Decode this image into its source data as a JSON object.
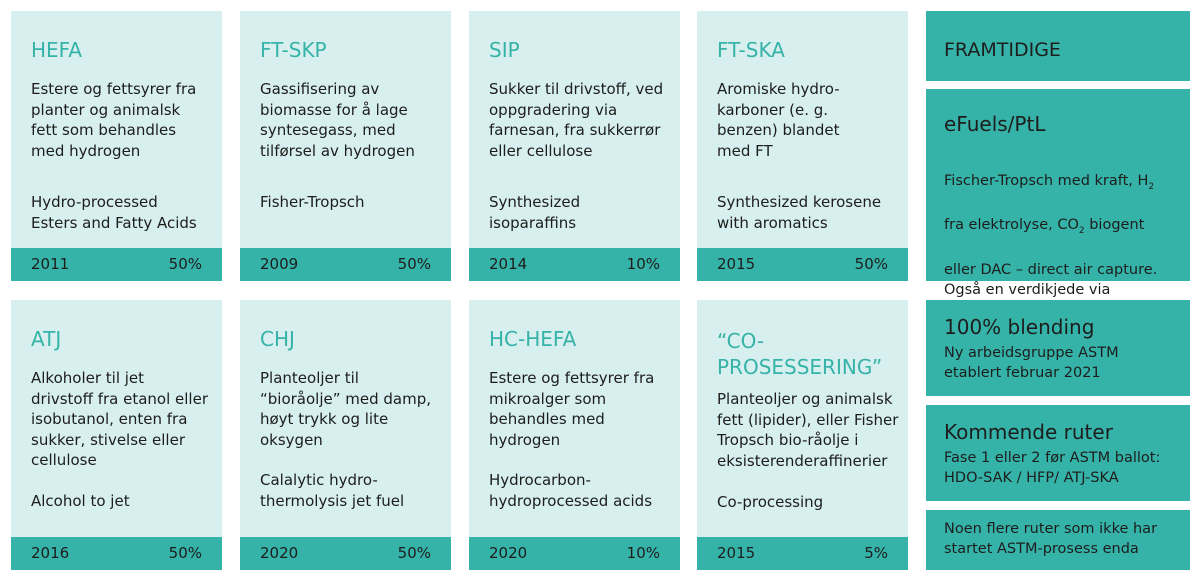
{
  "routes": [
    {
      "title": "HEFA",
      "desc": "Estere og fettsyrer fra\nplanter og animalsk\nfett som behandles\nmed hydrogen",
      "eng": "Hydro-processed\nEsters and Fatty Acids",
      "year": "2011",
      "pct": "50%"
    },
    {
      "title": "FT-SKP",
      "desc": "Gassifisering av\nbiomasse for å lage\nsyntesegass, med\ntilførsel av hydrogen",
      "eng": "Fisher-Tropsch",
      "year": "2009",
      "pct": "50%"
    },
    {
      "title": "SIP",
      "desc": "Sukker til drivstoff, ved\noppgradering via\nfarnesan, fra sukkerrør\neller cellulose",
      "eng": "Synthesized\nisoparaffins",
      "year": "2014",
      "pct": "10%"
    },
    {
      "title": "FT-SKA",
      "desc": "Aromiske hydro-\nkarboner (e. g.\nbenzen) blandet\nmed FT",
      "eng": "Synthesized kerosene\nwith aromatics",
      "year": "2015",
      "pct": "50%"
    },
    {
      "title": "ATJ",
      "desc": "Alkoholer til jet\ndrivstoff fra etanol eller\nisobutanol, enten fra\nsukker, stivelse eller\ncellulose",
      "eng": "Alcohol to jet",
      "year": "2016",
      "pct": "50%"
    },
    {
      "title": "CHJ",
      "desc": "Planteoljer til\n“bioråolje” med damp,\nhøyt trykk og lite\noksygen",
      "eng": "Calalytic hydro-\nthermolysis jet fuel",
      "year": "2020",
      "pct": "50%"
    },
    {
      "title": "HC-HEFA",
      "desc": "Estere og fettsyrer fra\nmikroalger som\nbehandles med\nhydrogen",
      "eng": "Hydrocarbon-\nhydroprocessed acids",
      "year": "2020",
      "pct": "10%"
    },
    {
      "title": "“CO-\nPROSESSERING”",
      "desc": "Planteoljer og animalsk\nfett (lipider), eller Fisher\nTropsch bio-råolje i\neksisterenderaffinerier",
      "eng": "Co-processing",
      "year": "2015",
      "pct": "5%"
    }
  ],
  "side": {
    "header": "FRAMTIDIGE",
    "efuels_title": "eFuels/PtL",
    "efuels_l1a": "Fischer-Tropsch med kraft, H",
    "efuels_l1sub": "2",
    "efuels_l2a": "fra elektrolyse, CO",
    "efuels_l2sub": "2",
    "efuels_l2b": " biogent",
    "efuels_rest": "eller DAC – direct air capture.\nOgså en verdikjede via\nmetanol kan bli mulig",
    "blend_title": "100% blending",
    "blend_text": "Ny arbeidsgruppe ASTM\netablert februar 2021",
    "coming_title": "Kommende ruter",
    "coming_text": "Fase 1 eller 2 før ASTM ballot:\nHDO-SAK / HFP/ ATJ-SKA",
    "more_text": "Noen flere ruter som ikke har\nstartet ASTM-prosess enda"
  }
}
